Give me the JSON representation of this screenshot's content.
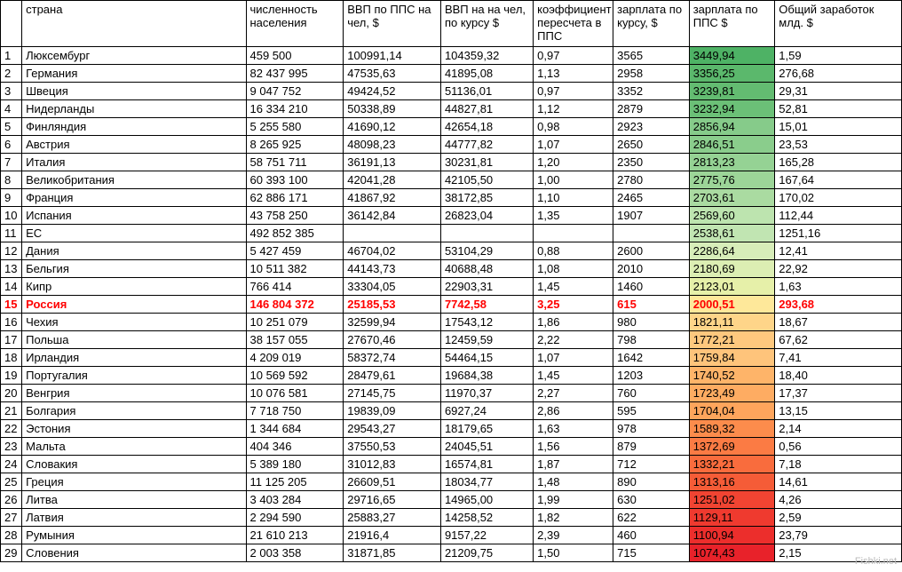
{
  "watermark": "Fishki.net",
  "table": {
    "columns": [
      "",
      "страна",
      "численность населения",
      "ВВП по ППС  на чел, $",
      "ВВП на на чел, по курсу $",
      "коэффициент пересчета в ППС",
      "зарплата по курсу, $",
      "зарплата по ППС $",
      "Общий заработок млд. $"
    ],
    "col_classes": [
      "col-idx",
      "col-country",
      "col-pop",
      "col-gdp-ppp",
      "col-gdp-rate",
      "col-coef",
      "col-sal-rate",
      "col-sal-ppp",
      "col-total"
    ],
    "highlight_row_index": 14,
    "ppp_colors": [
      "#4eb265",
      "#5bb86c",
      "#63bc71",
      "#6bc077",
      "#86cb8a",
      "#8acd8c",
      "#95d294",
      "#9cd598",
      "#aadba1",
      "#bde4af",
      "#c1e5b2",
      "#d7edb9",
      "#dceeb3",
      "#e6f0a9",
      "#fee89a",
      "#fed589",
      "#fec87e",
      "#fec47b",
      "#feb469",
      "#feac62",
      "#fea55c",
      "#fc8c4c",
      "#fb7b44",
      "#f96c3d",
      "#f55c37",
      "#f14432",
      "#ef3a2f",
      "#ec2e2c",
      "#e8222a"
    ],
    "rows": [
      {
        "n": "1",
        "country": "Люксембург",
        "pop": "459 500",
        "gdp_ppp": "100991,14",
        "gdp_rate": "104359,32",
        "coef": "0,97",
        "sal_rate": "3565",
        "sal_ppp": "3449,94",
        "total": "1,59"
      },
      {
        "n": "2",
        "country": "Германия",
        "pop": "82 437 995",
        "gdp_ppp": "47535,63",
        "gdp_rate": "41895,08",
        "coef": "1,13",
        "sal_rate": "2958",
        "sal_ppp": "3356,25",
        "total": "276,68"
      },
      {
        "n": "3",
        "country": "Швеция",
        "pop": "9 047 752",
        "gdp_ppp": "49424,52",
        "gdp_rate": "51136,01",
        "coef": "0,97",
        "sal_rate": "3352",
        "sal_ppp": "3239,81",
        "total": "29,31"
      },
      {
        "n": "4",
        "country": "Нидерланды",
        "pop": "16 334 210",
        "gdp_ppp": "50338,89",
        "gdp_rate": "44827,81",
        "coef": "1,12",
        "sal_rate": "2879",
        "sal_ppp": "3232,94",
        "total": "52,81"
      },
      {
        "n": "5",
        "country": "Финляндия",
        "pop": "5 255 580",
        "gdp_ppp": "41690,12",
        "gdp_rate": "42654,18",
        "coef": "0,98",
        "sal_rate": "2923",
        "sal_ppp": "2856,94",
        "total": "15,01"
      },
      {
        "n": "6",
        "country": "Австрия",
        "pop": "8 265 925",
        "gdp_ppp": "48098,23",
        "gdp_rate": "44777,82",
        "coef": "1,07",
        "sal_rate": "2650",
        "sal_ppp": "2846,51",
        "total": "23,53"
      },
      {
        "n": "7",
        "country": "Италия",
        "pop": "58 751 711",
        "gdp_ppp": "36191,13",
        "gdp_rate": "30231,81",
        "coef": "1,20",
        "sal_rate": "2350",
        "sal_ppp": "2813,23",
        "total": "165,28"
      },
      {
        "n": "8",
        "country": "Великобритания",
        "pop": "60 393 100",
        "gdp_ppp": "42041,28",
        "gdp_rate": "42105,50",
        "coef": "1,00",
        "sal_rate": "2780",
        "sal_ppp": "2775,76",
        "total": "167,64"
      },
      {
        "n": "9",
        "country": "Франция",
        "pop": "62 886 171",
        "gdp_ppp": "41867,92",
        "gdp_rate": "38172,85",
        "coef": "1,10",
        "sal_rate": "2465",
        "sal_ppp": "2703,61",
        "total": "170,02"
      },
      {
        "n": "10",
        "country": "Испания",
        "pop": "43 758 250",
        "gdp_ppp": "36142,84",
        "gdp_rate": "26823,04",
        "coef": "1,35",
        "sal_rate": "1907",
        "sal_ppp": "2569,60",
        "total": "112,44"
      },
      {
        "n": "11",
        "country": " ЕС",
        "pop": "492 852 385",
        "gdp_ppp": "",
        "gdp_rate": "",
        "coef": "",
        "sal_rate": "",
        "sal_ppp": "2538,61",
        "total": "1251,16"
      },
      {
        "n": "12",
        "country": "Дания",
        "pop": "5 427 459",
        "gdp_ppp": "46704,02",
        "gdp_rate": "53104,29",
        "coef": "0,88",
        "sal_rate": "2600",
        "sal_ppp": "2286,64",
        "total": "12,41"
      },
      {
        "n": "13",
        "country": "Бельгия",
        "pop": "10 511 382",
        "gdp_ppp": "44143,73",
        "gdp_rate": "40688,48",
        "coef": "1,08",
        "sal_rate": "2010",
        "sal_ppp": "2180,69",
        "total": "22,92"
      },
      {
        "n": "14",
        "country": "Кипр",
        "pop": "766 414",
        "gdp_ppp": "33304,05",
        "gdp_rate": "22903,31",
        "coef": "1,45",
        "sal_rate": "1460",
        "sal_ppp": "2123,01",
        "total": "1,63"
      },
      {
        "n": "15",
        "country": "Россия",
        "pop": "146 804 372",
        "gdp_ppp": "25185,53",
        "gdp_rate": "7742,58",
        "coef": "3,25",
        "sal_rate": "615",
        "sal_ppp": "2000,51",
        "total": "293,68"
      },
      {
        "n": "16",
        "country": "Чехия",
        "pop": "10 251 079",
        "gdp_ppp": "32599,94",
        "gdp_rate": "17543,12",
        "coef": "1,86",
        "sal_rate": "980",
        "sal_ppp": "1821,11",
        "total": "18,67"
      },
      {
        "n": "17",
        "country": "Польша",
        "pop": "38 157 055",
        "gdp_ppp": "27670,46",
        "gdp_rate": "12459,59",
        "coef": "2,22",
        "sal_rate": "798",
        "sal_ppp": "1772,21",
        "total": "67,62"
      },
      {
        "n": "18",
        "country": "Ирландия",
        "pop": "4 209 019",
        "gdp_ppp": "58372,74",
        "gdp_rate": "54464,15",
        "coef": "1,07",
        "sal_rate": "1642",
        "sal_ppp": "1759,84",
        "total": "7,41"
      },
      {
        "n": "19",
        "country": "Португалия",
        "pop": "10 569 592",
        "gdp_ppp": "28479,61",
        "gdp_rate": "19684,38",
        "coef": "1,45",
        "sal_rate": "1203",
        "sal_ppp": "1740,52",
        "total": "18,40"
      },
      {
        "n": "20",
        "country": "Венгрия",
        "pop": "10 076 581",
        "gdp_ppp": "27145,75",
        "gdp_rate": "11970,37",
        "coef": "2,27",
        "sal_rate": "760",
        "sal_ppp": "1723,49",
        "total": "17,37"
      },
      {
        "n": "21",
        "country": "Болгария",
        "pop": "7 718 750",
        "gdp_ppp": "19839,09",
        "gdp_rate": "6927,24",
        "coef": "2,86",
        "sal_rate": "595",
        "sal_ppp": "1704,04",
        "total": "13,15"
      },
      {
        "n": "22",
        "country": "Эстония",
        "pop": "1 344 684",
        "gdp_ppp": "29543,27",
        "gdp_rate": "18179,65",
        "coef": "1,63",
        "sal_rate": "978",
        "sal_ppp": "1589,32",
        "total": "2,14"
      },
      {
        "n": "23",
        "country": "Мальта",
        "pop": "404 346",
        "gdp_ppp": "37550,53",
        "gdp_rate": "24045,51",
        "coef": "1,56",
        "sal_rate": "879",
        "sal_ppp": "1372,69",
        "total": "0,56"
      },
      {
        "n": "24",
        "country": "Словакия",
        "pop": "5 389 180",
        "gdp_ppp": "31012,83",
        "gdp_rate": "16574,81",
        "coef": "1,87",
        "sal_rate": "712",
        "sal_ppp": "1332,21",
        "total": "7,18"
      },
      {
        "n": "25",
        "country": "Греция",
        "pop": "11 125 205",
        "gdp_ppp": "26609,51",
        "gdp_rate": "18034,77",
        "coef": "1,48",
        "sal_rate": "890",
        "sal_ppp": "1313,16",
        "total": "14,61"
      },
      {
        "n": "26",
        "country": "Литва",
        "pop": "3 403 284",
        "gdp_ppp": "29716,65",
        "gdp_rate": "14965,00",
        "coef": "1,99",
        "sal_rate": "630",
        "sal_ppp": "1251,02",
        "total": "4,26"
      },
      {
        "n": "27",
        "country": "Латвия",
        "pop": "2 294 590",
        "gdp_ppp": "25883,27",
        "gdp_rate": "14258,52",
        "coef": "1,82",
        "sal_rate": "622",
        "sal_ppp": "1129,11",
        "total": "2,59"
      },
      {
        "n": "28",
        "country": "Румыния",
        "pop": "21 610 213",
        "gdp_ppp": "21916,4",
        "gdp_rate": "9157,22",
        "coef": "2,39",
        "sal_rate": "460",
        "sal_ppp": "1100,94",
        "total": "23,79"
      },
      {
        "n": "29",
        "country": "Словения",
        "pop": "2 003 358",
        "gdp_ppp": "31871,85",
        "gdp_rate": "21209,75",
        "coef": "1,50",
        "sal_rate": "715",
        "sal_ppp": "1074,43",
        "total": "2,15"
      }
    ]
  }
}
